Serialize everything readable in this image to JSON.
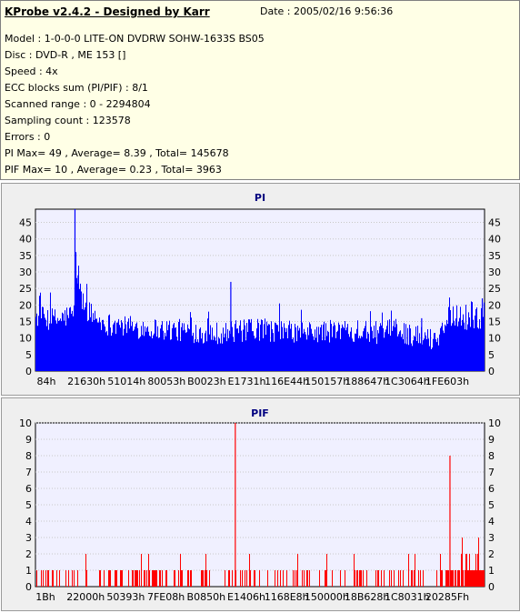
{
  "header": {
    "title": "KProbe v2.4.2 - Designed by Karr",
    "date": "Date : 2005/02/16 9:56:36",
    "lines": [
      "Model : 1-0-0-0 LITE-ON DVDRW SOHW-1633S BS05",
      "Disc : DVD-R , ME 153 []",
      "Speed : 4x",
      "ECC blocks sum (PI/PIF) : 8/1",
      "Scanned range : 0 - 2294804",
      "Sampling count : 123578",
      "Errors : 0",
      "PI Max= 49 , Average= 8.39 , Total= 145678",
      "PIF Max= 10 , Average= 0.23 , Total= 3963"
    ]
  },
  "chart_data": [
    {
      "type": "bar",
      "title": "PI",
      "color": "#0000ff",
      "ylim": [
        0,
        49
      ],
      "yticks": [
        0,
        5,
        10,
        15,
        20,
        25,
        30,
        35,
        40,
        45
      ],
      "xticks": [
        "84h",
        "21630h",
        "51014h",
        "80053h",
        "B0023h",
        "E1731h",
        "116E44h",
        "150157h",
        "188647h",
        "1C3064h",
        "1FE603h"
      ],
      "grid": true,
      "background": "#f0f0ff",
      "profile_x": [
        0,
        0.05,
        0.085,
        0.095,
        0.1,
        0.115,
        0.13,
        0.15,
        0.2,
        0.3,
        0.4,
        0.5,
        0.6,
        0.7,
        0.75,
        0.8,
        0.85,
        0.88,
        0.9,
        0.93,
        0.96,
        1.0
      ],
      "profile_y": [
        16,
        15,
        17,
        30,
        22,
        18,
        16,
        14,
        13,
        12,
        11,
        12,
        11,
        12,
        11,
        12,
        10,
        9,
        11,
        17,
        15,
        16
      ],
      "spikes": [
        {
          "x": 0.088,
          "y": 49
        },
        {
          "x": 0.09,
          "y": 36
        },
        {
          "x": 0.095,
          "y": 29
        },
        {
          "x": 0.435,
          "y": 27
        },
        {
          "x": 0.86,
          "y": 16
        },
        {
          "x": 0.995,
          "y": 22
        }
      ]
    },
    {
      "type": "bar",
      "title": "PIF",
      "color": "#ff0000",
      "ylim": [
        0,
        10
      ],
      "yticks": [
        0,
        1,
        2,
        3,
        4,
        5,
        6,
        7,
        8,
        9,
        10
      ],
      "xticks": [
        "1Bh",
        "22000h",
        "50393h",
        "7FE08h",
        "B0850h",
        "E1406h",
        "1168E8h",
        "150000h",
        "18B628h",
        "1C8031h",
        "20285Fh"
      ],
      "grid": true,
      "background": "#f0f0ff",
      "spikes": [
        {
          "x": 0.445,
          "y": 10
        },
        {
          "x": 0.923,
          "y": 8
        }
      ]
    }
  ]
}
